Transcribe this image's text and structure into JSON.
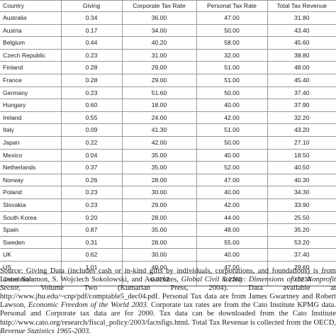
{
  "table": {
    "headers": {
      "country": "Country",
      "giving": "Giving",
      "corporate_tax": "Corporate Tax Rate",
      "personal_tax": "Personal Tax Rate",
      "total_revenue": "Total Tax Revenue"
    },
    "rows": [
      {
        "country": "Australia",
        "giving": "0.34",
        "corporate_tax": "36.00",
        "personal_tax": "47.00",
        "total_revenue": "31.80"
      },
      {
        "country": "Austria",
        "giving": "0.17",
        "corporate_tax": "34.00",
        "personal_tax": "50.00",
        "total_revenue": "43.40"
      },
      {
        "country": "Belgium",
        "giving": "0.44",
        "corporate_tax": "40.20",
        "personal_tax": "58.00",
        "total_revenue": "45.60"
      },
      {
        "country": "Czech Republic",
        "giving": "0.23",
        "corporate_tax": "31.00",
        "personal_tax": "32.00",
        "total_revenue": "38.80"
      },
      {
        "country": "Finland",
        "giving": "0.28",
        "corporate_tax": "29.00",
        "personal_tax": "51.00",
        "total_revenue": "48.00"
      },
      {
        "country": "France",
        "giving": "0.28",
        "corporate_tax": "29.00",
        "personal_tax": "51.00",
        "total_revenue": "45.40"
      },
      {
        "country": "Germany",
        "giving": "0.23",
        "corporate_tax": "51.60",
        "personal_tax": "50.00",
        "total_revenue": "37.40"
      },
      {
        "country": "Hungary",
        "giving": "0.60",
        "corporate_tax": "18.00",
        "personal_tax": "40.00",
        "total_revenue": "37.90"
      },
      {
        "country": "Ireland",
        "giving": "0.55",
        "corporate_tax": "24.00",
        "personal_tax": "42.00",
        "total_revenue": "32.20"
      },
      {
        "country": "Italy",
        "giving": "0.09",
        "corporate_tax": "41.30",
        "personal_tax": "51.00",
        "total_revenue": "43.20"
      },
      {
        "country": "Japan",
        "giving": "0.22",
        "corporate_tax": "42.00",
        "personal_tax": "50.00",
        "total_revenue": "27.10"
      },
      {
        "country": "Mexico",
        "giving": "0.04",
        "corporate_tax": "35.00",
        "personal_tax": "40.00",
        "total_revenue": "18.50"
      },
      {
        "country": "Netherlands",
        "giving": "0.37",
        "corporate_tax": "35.00",
        "personal_tax": "52.00",
        "total_revenue": "40.50"
      },
      {
        "country": "Norway",
        "giving": "0.26",
        "corporate_tax": "28.00",
        "personal_tax": "47.00",
        "total_revenue": "40.30"
      },
      {
        "country": "Poland",
        "giving": "0.23",
        "corporate_tax": "30.00",
        "personal_tax": "40.00",
        "total_revenue": "34.30"
      },
      {
        "country": "Slovakia",
        "giving": "0.23",
        "corporate_tax": "29.00",
        "personal_tax": "42.00",
        "total_revenue": "33.90"
      },
      {
        "country": "South Korea",
        "giving": "0.20",
        "corporate_tax": "28.00",
        "personal_tax": "44.00",
        "total_revenue": "25.50"
      },
      {
        "country": "Spain",
        "giving": "0.87",
        "corporate_tax": "35.00",
        "personal_tax": "48.00",
        "total_revenue": "35.20"
      },
      {
        "country": "Sweden",
        "giving": "0.31",
        "corporate_tax": "28.00",
        "personal_tax": "55.00",
        "total_revenue": "53.20"
      },
      {
        "country": "UK",
        "giving": "0.62",
        "corporate_tax": "30.00",
        "personal_tax": "40.00",
        "total_revenue": "37.40"
      },
      {
        "country": "US",
        "giving": "1.01",
        "corporate_tax": "40.00",
        "personal_tax": "47.00",
        "total_revenue": "29.60"
      }
    ],
    "correlation": {
      "label": "Correlation",
      "giving": "",
      "corporate_tax": "-0.2262",
      "personal_tax": "-0.2262",
      "total_revenue": "0.0234"
    }
  },
  "source_note": {
    "p1": "Source: Giving Data (includes cash or in-kind gifts by individuals, corporations, and foundations) is from Lester Salamon, S. Wojciech Sokolowski, and Associates, ",
    "book1": "Global Civil Society: Dimensions of the Nonprofit Sector,",
    "p2": " Volume Two (Kumarian Press, 2004). Data available at http://www.jhu.edu/~cnp/pdf/comptable5_dec04.pdf. Personal Tax data are from James Gwartney and Robert Lawson, ",
    "book2": "Economic Freedom of the World 2003.",
    "p3": " Corporate tax rates are from the Cato Institute KPMG data. Personal and Corporate tax data are for 2000. Tax data can be downloaded from the Cato Institute http://www.cato.org/research/fiscal_policy/2003/factsfigs.html. Total Tax Revenue is collected from the OECD, ",
    "book3": "Revenue Statistics 1965-2003."
  }
}
